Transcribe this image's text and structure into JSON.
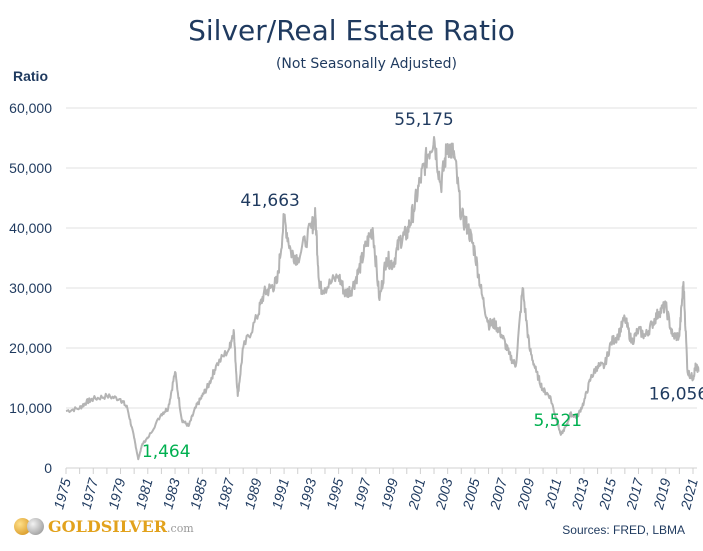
{
  "chart_data": {
    "type": "line",
    "title": "Silver/Real Estate Ratio",
    "subtitle": "(Not Seasonally Adjusted)",
    "ylabel": "Ratio",
    "xlabel": "",
    "ylim": [
      0,
      60000
    ],
    "xlim": [
      1975,
      2021.5
    ],
    "yticks": [
      "0",
      "10,000",
      "20,000",
      "30,000",
      "40,000",
      "50,000",
      "60,000"
    ],
    "ytick_values": [
      0,
      10000,
      20000,
      30000,
      40000,
      50000,
      60000
    ],
    "xticks": [
      "1975",
      "1977",
      "1979",
      "1981",
      "1983",
      "1985",
      "1987",
      "1989",
      "1991",
      "1993",
      "1995",
      "1997",
      "1999",
      "2001",
      "2003",
      "2005",
      "2007",
      "2009",
      "2011",
      "2013",
      "2015",
      "2017",
      "2019",
      "2021"
    ],
    "grid": "horizontal",
    "series": [
      {
        "color": "#b4b4b4",
        "x": [
          1975,
          1976,
          1976.5,
          1977,
          1978,
          1979,
          1979.5,
          1980,
          1980.3,
          1980.6,
          1981,
          1982,
          1982.5,
          1983,
          1983.5,
          1984,
          1984.5,
          1985,
          1985.5,
          1986,
          1987,
          1987.3,
          1987.6,
          1988,
          1989,
          1989.5,
          1990,
          1990.5,
          1991,
          1991.5,
          1992,
          1993,
          1993.3,
          1993.6,
          1994,
          1995,
          1995.5,
          1996,
          1996.5,
          1997,
          1997.5,
          1998,
          1998.5,
          1999,
          1999.5,
          2000,
          2000.5,
          2001,
          2001.5,
          2002,
          2002.5,
          2003,
          2003.5,
          2004,
          2004.5,
          2005,
          2005.5,
          2006,
          2006.5,
          2007,
          2007.5,
          2008,
          2008.5,
          2009,
          2009.5,
          2010,
          2010.5,
          2011,
          2011.3,
          2011.7,
          2012,
          2012.5,
          2013,
          2013.5,
          2014,
          2014.5,
          2015,
          2015.5,
          2016,
          2016.5,
          2017,
          2017.5,
          2018,
          2018.5,
          2019,
          2019.5,
          2020,
          2020.3,
          2020.6,
          2021,
          2021.2,
          2021.4
        ],
        "y": [
          9500,
          10000,
          11000,
          11500,
          12000,
          11500,
          10000,
          5000,
          1464,
          4000,
          5000,
          9000,
          10000,
          16000,
          8000,
          7000,
          10000,
          12000,
          14000,
          17000,
          20000,
          23000,
          12000,
          20000,
          25000,
          29000,
          30000,
          31000,
          41663,
          36000,
          35000,
          40000,
          42000,
          30000,
          30000,
          32000,
          29000,
          30000,
          33000,
          37000,
          40000,
          28000,
          35000,
          34000,
          38000,
          39000,
          43000,
          48000,
          52000,
          55175,
          47000,
          54000,
          52000,
          42000,
          40000,
          36000,
          29000,
          24000,
          24000,
          22000,
          19000,
          17000,
          30000,
          20000,
          16000,
          13000,
          12000,
          8000,
          5521,
          7000,
          9000,
          8500,
          11000,
          15000,
          17000,
          17000,
          21000,
          22000,
          25000,
          21000,
          23000,
          22000,
          24000,
          26000,
          27000,
          22000,
          22000,
          31000,
          16000,
          15000,
          17000,
          16056
        ]
      }
    ],
    "annotations": [
      {
        "text": "55,175",
        "x": 2002,
        "y": 55175,
        "color": "#1f3a5f"
      },
      {
        "text": "41,663",
        "x": 1991,
        "y": 41663,
        "color": "#1f3a5f"
      },
      {
        "text": "1,464",
        "x": 1980.3,
        "y": 1464,
        "color": "#00b050"
      },
      {
        "text": "5,521",
        "x": 2011.3,
        "y": 5521,
        "color": "#00b050"
      },
      {
        "text": "16,056",
        "x": 2021.4,
        "y": 16056,
        "color": "#1f3a5f"
      }
    ]
  },
  "footer": {
    "logo_text": "GOLDSILVER",
    "logo_suffix": ".com",
    "source": "Sources: FRED, LBMA"
  }
}
